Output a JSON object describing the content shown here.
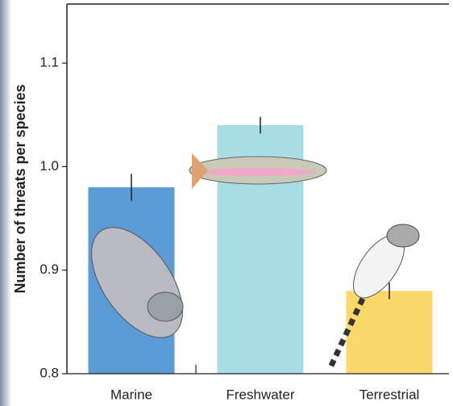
{
  "chart_data": {
    "type": "bar",
    "y_label": "Number of threats per species",
    "categories": [
      "Marine",
      "Freshwater",
      "Terrestrial"
    ],
    "values": [
      0.98,
      1.04,
      0.88
    ],
    "errors": [
      0.013,
      0.008,
      0.008
    ],
    "colors": [
      "#5b9bd6",
      "#a9dde6",
      "#fbd86a"
    ],
    "ylim": [
      0.8,
      1.157
    ],
    "yticks": [
      0.8,
      0.9,
      {
        "value": 1.0,
        "label": "1.0"
      },
      1.1
    ]
  }
}
